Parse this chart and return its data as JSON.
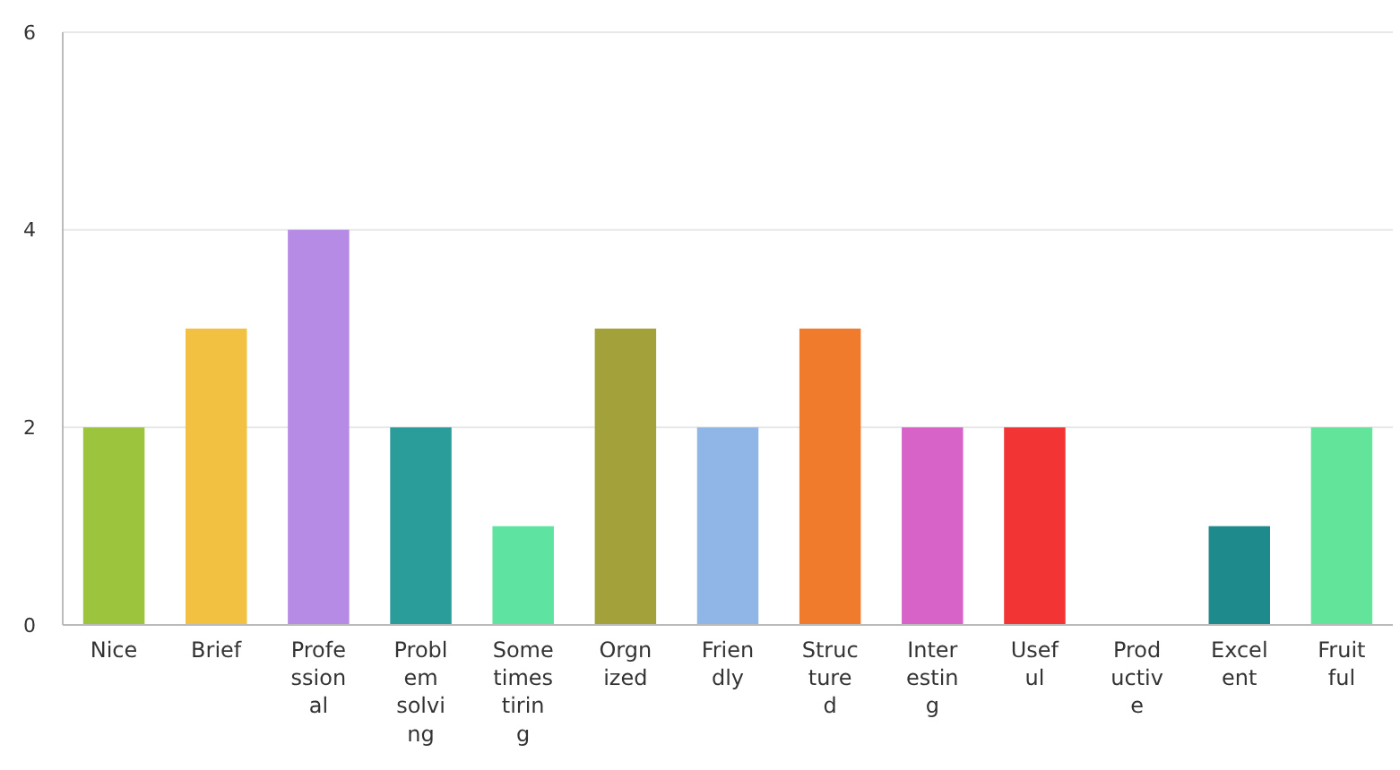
{
  "chart_data": {
    "type": "bar",
    "categories": [
      "Nice",
      "Brief",
      "Profe\nssion\nal",
      "Probl\nem\nsolvi\nng",
      "Some\ntimes\ntirin\ng",
      "Orgn\nized",
      "Frien\ndly",
      "Struc\nture\nd",
      "Inter\nestin\ng",
      "Usef\nul",
      "Prod\nuctiv\ne",
      "Excel\nent",
      "Fruit\nful"
    ],
    "values": [
      2,
      3,
      4,
      2,
      1,
      3,
      2,
      3,
      2,
      2,
      0,
      1,
      2
    ],
    "colors": [
      "#9cc43c",
      "#f2c141",
      "#b58be6",
      "#2a9c9a",
      "#5fe3a1",
      "#a3a23a",
      "#8fb6e6",
      "#f07b2c",
      "#d763c9",
      "#f23434",
      "#cccccc",
      "#1f8a8c",
      "#62e59a"
    ],
    "ylim": [
      0,
      6
    ],
    "yticks": [
      0,
      2,
      4,
      6
    ],
    "grid": "y"
  }
}
